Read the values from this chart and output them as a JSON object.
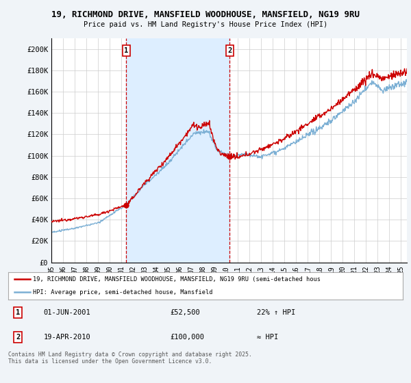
{
  "title_line1": "19, RICHMOND DRIVE, MANSFIELD WOODHOUSE, MANSFIELD, NG19 9RU",
  "title_line2": "Price paid vs. HM Land Registry's House Price Index (HPI)",
  "ylabel_ticks": [
    "£0",
    "£20K",
    "£40K",
    "£60K",
    "£80K",
    "£100K",
    "£120K",
    "£140K",
    "£160K",
    "£180K",
    "£200K"
  ],
  "ytick_values": [
    0,
    20000,
    40000,
    60000,
    80000,
    100000,
    120000,
    140000,
    160000,
    180000,
    200000
  ],
  "xlim_start": 1995.0,
  "xlim_end": 2025.5,
  "ylim_min": 0,
  "ylim_max": 210000,
  "hpi_color": "#7bafd4",
  "hpi_fill_color": "#ddeeff",
  "price_color": "#cc0000",
  "vline_color": "#cc0000",
  "marker1_x": 2001.42,
  "marker2_x": 2010.3,
  "marker1_label": "1",
  "marker2_label": "2",
  "legend_line1": "19, RICHMOND DRIVE, MANSFIELD WOODHOUSE, MANSFIELD, NG19 9RU (semi-detached hous",
  "legend_line2": "HPI: Average price, semi-detached house, Mansfield",
  "annotation1_date": "01-JUN-2001",
  "annotation1_price": "£52,500",
  "annotation1_hpi": "22% ↑ HPI",
  "annotation2_date": "19-APR-2010",
  "annotation2_price": "£100,000",
  "annotation2_hpi": "≈ HPI",
  "footer": "Contains HM Land Registry data © Crown copyright and database right 2025.\nThis data is licensed under the Open Government Licence v3.0.",
  "background_color": "#f0f4f8",
  "plot_bg_color": "#ffffff",
  "grid_color": "#cccccc"
}
